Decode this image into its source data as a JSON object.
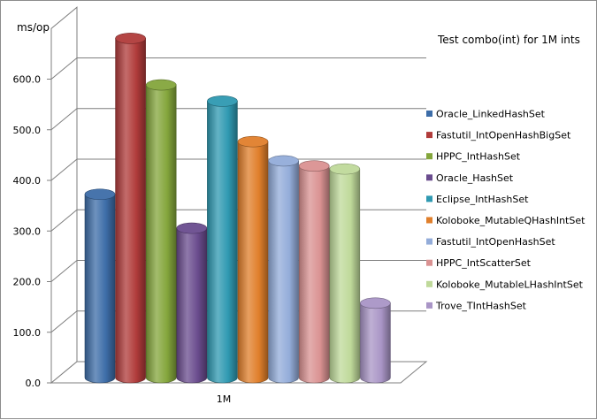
{
  "chart_data": {
    "type": "bar",
    "title": "Test combo(int) for 1M ints",
    "ylabel": "ms/op",
    "xlabel": "",
    "categories": [
      "1M"
    ],
    "ylim": [
      0,
      700
    ],
    "yticks": [
      "0.0",
      "100.0",
      "200.0",
      "300.0",
      "400.0",
      "500.0",
      "600.0"
    ],
    "ytick_values": [
      0,
      100,
      200,
      300,
      400,
      500,
      600
    ],
    "grid": true,
    "legend_position": "right",
    "series": [
      {
        "name": "Oracle_LinkedHashSet",
        "values": [
          362
        ],
        "color": "#3D6DA8"
      },
      {
        "name": "Fastutil_IntOpenHashBigSet",
        "values": [
          670
        ],
        "color": "#B03B3A"
      },
      {
        "name": "HPPC_IntHashSet",
        "values": [
          578
        ],
        "color": "#84A63C"
      },
      {
        "name": "Oracle_HashSet",
        "values": [
          295
        ],
        "color": "#6A4C8E"
      },
      {
        "name": "Eclipse_IntHashSet",
        "values": [
          546
        ],
        "color": "#2F99B1"
      },
      {
        "name": "Koloboke_MutableQHashIntSet",
        "values": [
          466
        ],
        "color": "#E07F2B"
      },
      {
        "name": "Fastutil_IntOpenHashSet",
        "values": [
          428
        ],
        "color": "#93ACD9"
      },
      {
        "name": "HPPC_IntScatterSet",
        "values": [
          418
        ],
        "color": "#DA9292"
      },
      {
        "name": "Koloboke_MutableLHashIntSet",
        "values": [
          412
        ],
        "color": "#BFD99A"
      },
      {
        "name": "Trove_TIntHashSet",
        "values": [
          147
        ],
        "color": "#A995C6"
      }
    ]
  }
}
